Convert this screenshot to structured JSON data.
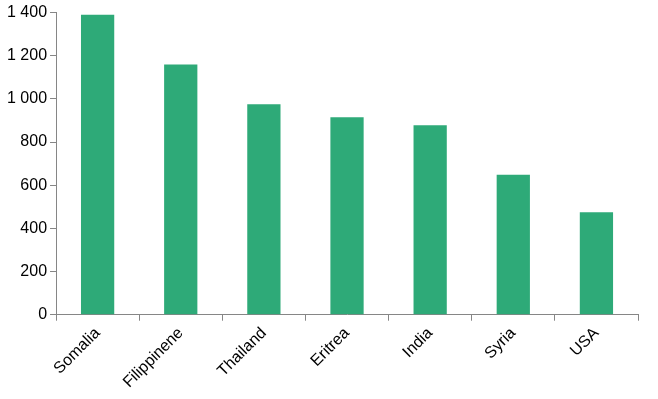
{
  "chart_data": {
    "type": "bar",
    "categories": [
      "Somalia",
      "Filippinene",
      "Thailand",
      "Eritrea",
      "India",
      "Syria",
      "USA"
    ],
    "values": [
      1390,
      1160,
      975,
      915,
      878,
      648,
      475
    ],
    "color": "#2eaa78",
    "ylim": [
      0,
      1400
    ],
    "yticks": [
      0,
      200,
      400,
      600,
      800,
      {
        "value": 1000,
        "label": "1 000"
      },
      {
        "value": 1200,
        "label": "1 200"
      },
      {
        "value": 1400,
        "label": "1 400"
      }
    ],
    "grid": false
  }
}
